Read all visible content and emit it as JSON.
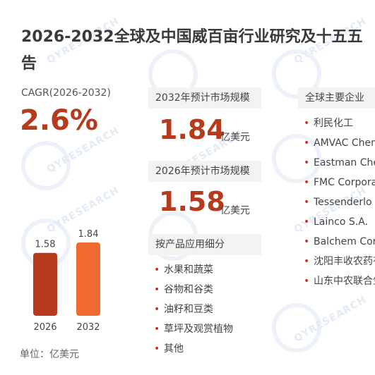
{
  "title": {
    "line1": "2026-2032全球及中国威百亩行业研究及十五五",
    "line2": "告"
  },
  "cagr": {
    "label": "CAGR(2026-2032)",
    "value": "2.6%"
  },
  "market": {
    "y2032_label": "2032年预计市场规模",
    "y2032_value": "1.84",
    "y2026_label": "2026年预计市场规模",
    "y2026_value": "1.58",
    "unit": "亿美元"
  },
  "chart_data": {
    "type": "bar",
    "categories": [
      "2026",
      "2032"
    ],
    "values": [
      1.58,
      1.84
    ],
    "value_labels": [
      "1.58",
      "1.84"
    ],
    "colors": [
      "#b63a1c",
      "#f06a30"
    ]
  },
  "chart_unit": "单位：亿美元",
  "applications": {
    "header": "按产品应用细分",
    "items": [
      "水果和蔬菜",
      "谷物和谷类",
      "油籽和豆类",
      "草坪及观赏植物",
      "其他"
    ]
  },
  "companies": {
    "header": "全球主要企业",
    "items": [
      "利民化工",
      "AMVAC Chem",
      "Eastman Che",
      "FMC Corpora",
      "Tessenderlo K",
      "Lainco S.A.",
      "Balchem Corp",
      "沈阳丰收农药有",
      "山东中农联合生"
    ]
  },
  "bullet": "•",
  "watermark": "QYRESEARCH"
}
